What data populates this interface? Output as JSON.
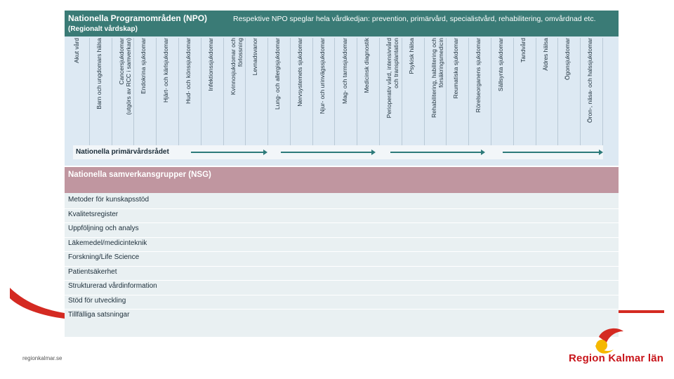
{
  "npo": {
    "title": "Nationella Programområden (NPO)",
    "subtitle": "(Regionalt vårdskap)",
    "description": "Respektive NPO speglar hela vårdkedjan: prevention, primärvård, specialistvård, rehabilitering, omvårdnad etc.",
    "columns": [
      "Akut vård",
      "Barn och ungdomars hälsa",
      "Cancersjukdomar\n(utgörs av RCC i samverkan)",
      "Endokrina sjukdomar",
      "Hjärt- och kärlsjukdomar",
      "Hud- och könssjukdomar",
      "Infektionssjukdomar",
      "Kvinnosjukdomar och\nförlossning",
      "Levnadsvanor",
      "Lung- och allergisjukdomar",
      "Nervsystemets sjukdomar",
      "Njur- och urinvägssjukdomar",
      "Mag- och tarmsjukdomar",
      "Medicinsk diagnostik",
      "Perioperativ vård, intensivvård\noch transplantation",
      "Psykisk hälsa",
      "Rehabilitering, habilitering och\nförsäkringsmedicin",
      "Reumatiska sjukdomar",
      "Rörelseorganens sjukdomar",
      "Sällsynta sjukdomar",
      "Tandvård",
      "Äldres hälsa",
      "Ögonsjukdomar",
      "Öron-, näsa- och halssjukdomar"
    ],
    "primary_care": "Nationella primärvårdsrådet"
  },
  "nsg": {
    "title": "Nationella samverkansgrupper (NSG)",
    "rows": [
      "Metoder för kunskapsstöd",
      "Kvalitetsregister",
      "Uppföljning och analys",
      "Läkemedel/medicinteknik",
      "Forskning/Life Science",
      "Patientsäkerhet",
      "Strukturerad vårdinformation",
      "Stöd för utveckling",
      "Tillfälliga satsningar"
    ]
  },
  "footer": {
    "url": "regionkalmar.se",
    "logo_text": "Region Kalmar län"
  },
  "colors": {
    "npo_header": "#3a7b76",
    "npo_body": "#dde9f3",
    "nsg_header": "#c096a0",
    "brand_red": "#c8151b",
    "brand_yellow": "#f5b800"
  }
}
